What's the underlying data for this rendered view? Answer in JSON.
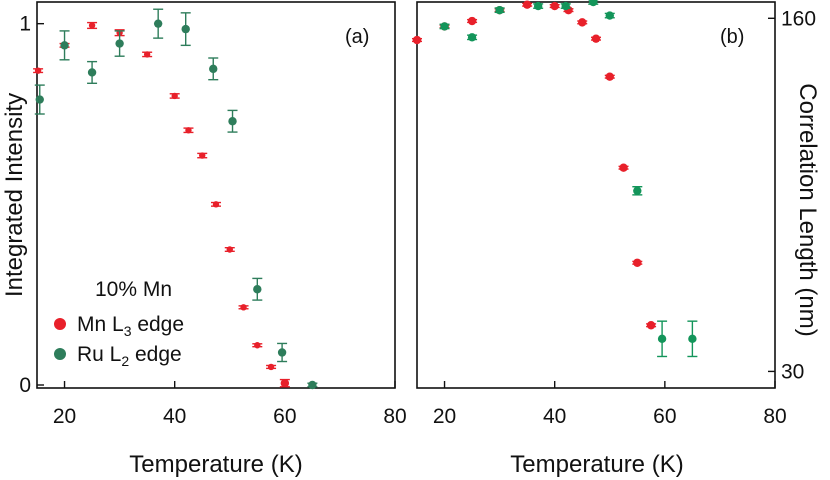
{
  "colors": {
    "mn": "#e8202a",
    "ru": "#2e7d5b",
    "ru_b": "#13955a",
    "axis": "#111111"
  },
  "chart_data": [
    {
      "panel": "(a)",
      "type": "scatter",
      "xlabel": "Temperature (K)",
      "ylabel": "Integrated Intensity",
      "xlim": [
        15,
        80
      ],
      "ylim": [
        0,
        1.06
      ],
      "xticks": [
        20,
        40,
        60,
        80
      ],
      "yticks": [
        0,
        1
      ],
      "ytick_labels": [
        "0",
        "1"
      ],
      "legend": {
        "position": "bottom-left",
        "title": "10% Mn",
        "mn": {
          "prefix": "Mn L",
          "sub": "3",
          "suffix": " edge"
        },
        "ru": {
          "prefix": "Ru L",
          "sub": "2",
          "suffix": " edge"
        }
      },
      "series": [
        {
          "name": "Mn L3 edge",
          "color": "#e8202a",
          "x": [
            15.2,
            20,
            25,
            30,
            35,
            40,
            42.5,
            45,
            47.5,
            50,
            52.5,
            55,
            57.5,
            60
          ],
          "y": [
            0.87,
            0.94,
            0.995,
            0.975,
            0.915,
            0.8,
            0.705,
            0.635,
            0.5,
            0.375,
            0.215,
            0.11,
            0.05,
            0.005
          ],
          "err": [
            0.005,
            0.005,
            0.008,
            0.008,
            0.006,
            0.006,
            0.006,
            0.006,
            0.005,
            0.005,
            0.004,
            0.004,
            0.004,
            0.01
          ]
        },
        {
          "name": "Ru L2 edge",
          "color": "#2e7d5b",
          "x": [
            15.5,
            20,
            25,
            30,
            37,
            42,
            47,
            50.5,
            55,
            59.5,
            65
          ],
          "y": [
            0.79,
            0.94,
            0.865,
            0.945,
            1.0,
            0.985,
            0.875,
            0.73,
            0.265,
            0.09,
            0.0
          ],
          "err": [
            0.04,
            0.04,
            0.03,
            0.035,
            0.04,
            0.045,
            0.03,
            0.03,
            0.03,
            0.025,
            0.005
          ]
        }
      ]
    },
    {
      "panel": "(b)",
      "type": "scatter",
      "xlabel": "Temperature (K)",
      "ylabel": "Correlation Length (nm)",
      "ylabel_side": "right",
      "xlim": [
        15,
        80
      ],
      "ylim": [
        25,
        166
      ],
      "xticks": [
        20,
        40,
        60,
        80
      ],
      "yticks": [
        30,
        160
      ],
      "ytick_labels": [
        "30",
        "160"
      ],
      "series": [
        {
          "name": "Mn L3 edge",
          "color": "#e8202a",
          "x": [
            15,
            20,
            25,
            30,
            35,
            40,
            42.5,
            45,
            47.5,
            50,
            52.5,
            55,
            57.5
          ],
          "y": [
            152,
            157,
            159,
            163,
            165,
            164.5,
            163,
            158.5,
            152.5,
            138.5,
            105,
            70,
            47
          ],
          "err": [
            0.5,
            0.5,
            0.5,
            0.5,
            0.5,
            0.5,
            0.5,
            0.5,
            0.5,
            0.5,
            0.5,
            0.5,
            0.5
          ]
        },
        {
          "name": "Ru L2 edge",
          "color": "#13955a",
          "x": [
            20,
            25,
            30,
            37,
            42,
            47,
            50,
            55,
            59.5,
            65
          ],
          "y": [
            157,
            153,
            163,
            164.5,
            164.5,
            166,
            161,
            96.5,
            42,
            42
          ],
          "err": [
            0.8,
            0.8,
            0.8,
            0.8,
            0.8,
            0.8,
            0.8,
            1.5,
            6.5,
            6.5
          ]
        }
      ]
    }
  ]
}
